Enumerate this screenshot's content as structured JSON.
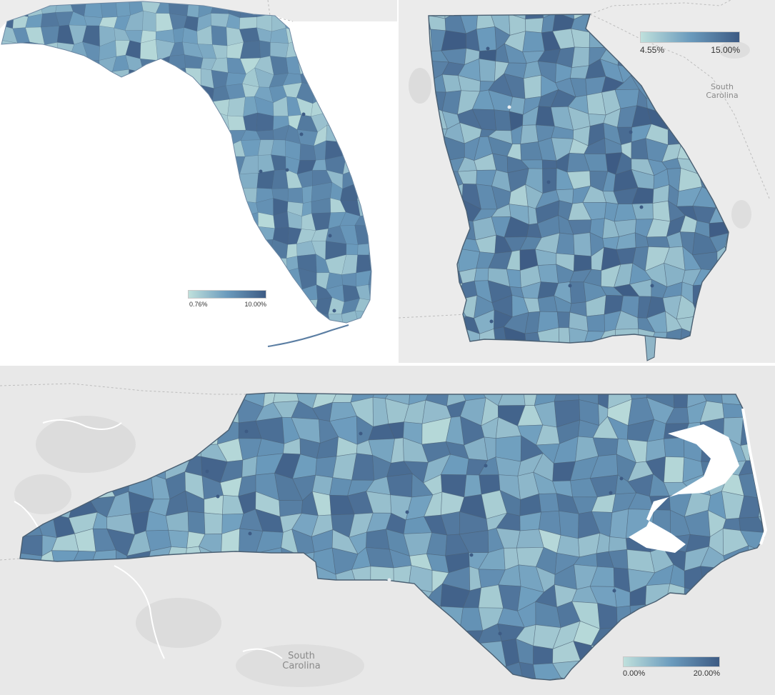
{
  "colors": {
    "low": "#bfe0dc",
    "mid": "#6b9bbd",
    "high": "#3d5b84",
    "basemap": "#e8e8e8",
    "border": "#4a5f72"
  },
  "florida": {
    "legend": {
      "min_label": "0.76%",
      "max_label": "10.00%"
    }
  },
  "georgia": {
    "legend": {
      "min_label": "4.55%",
      "max_label": "15.00%"
    },
    "neighbor_label_line1": "South",
    "neighbor_label_line2": "Carolina"
  },
  "north_carolina": {
    "legend": {
      "min_label": "0.00%",
      "max_label": "20.00%"
    },
    "neighbor_label_line1": "South",
    "neighbor_label_line2": "Carolina"
  }
}
